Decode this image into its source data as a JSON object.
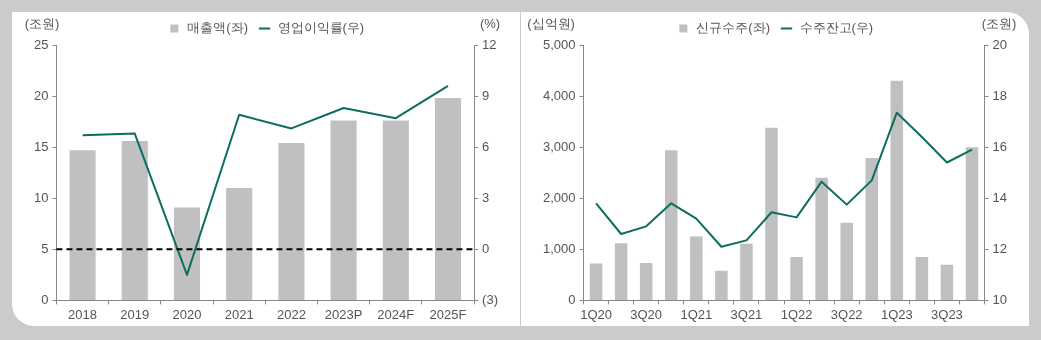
{
  "chart_data": [
    {
      "type": "bar",
      "ylabel": "(조원)",
      "y2label": "(%)",
      "legend": "top",
      "marker": "none",
      "categories": [
        "2018",
        "2019",
        "2020",
        "2021",
        "2022",
        "2023P",
        "2024F",
        "2025F"
      ],
      "series": [
        {
          "name": "매출액(좌)",
          "color": "#c0c0c0",
          "values": [
            14.7,
            15.6,
            9.1,
            11.0,
            15.4,
            17.6,
            17.6,
            19.8
          ]
        },
        {
          "name": "영업이익률(우)",
          "type": "line",
          "axis": "y2",
          "color": "#0b6e5f",
          "values": [
            6.7,
            6.8,
            -1.5,
            7.9,
            7.1,
            8.3,
            7.7,
            9.6
          ]
        }
      ],
      "ylim": [
        0,
        25
      ],
      "yticks": [
        0,
        5,
        10,
        15,
        20,
        25
      ],
      "y2lim": [
        -3,
        12
      ],
      "y2ticks": [
        {
          "value": -3,
          "label": "(3)"
        },
        0,
        3,
        6,
        9,
        12
      ],
      "ref_lines": [
        {
          "axis": "y2",
          "value": 0,
          "color": "#000000",
          "line_style": "dashed"
        }
      ]
    },
    {
      "type": "bar",
      "ylabel": "(십억원)",
      "y2label": "(조원)",
      "legend": "top",
      "marker": "none",
      "categories": [
        "1Q20",
        null,
        "3Q20",
        null,
        "1Q21",
        null,
        "3Q21",
        null,
        "1Q22",
        null,
        "3Q22",
        null,
        "1Q23",
        null,
        "3Q23",
        null
      ],
      "series": [
        {
          "name": "신규수주(좌)",
          "color": "#c0c0c0",
          "values": [
            720,
            1120,
            730,
            2940,
            1250,
            580,
            1110,
            3380,
            850,
            2400,
            1520,
            2790,
            4300,
            850,
            700,
            3000
          ]
        },
        {
          "name": "수주잔고(우)",
          "type": "line",
          "axis": "y2",
          "color": "#0b6e5f",
          "values": [
            13.8,
            12.6,
            12.9,
            13.8,
            13.2,
            12.1,
            12.35,
            13.45,
            13.25,
            14.65,
            13.75,
            14.7,
            17.35,
            16.4,
            15.4,
            15.9
          ]
        }
      ],
      "ylim": [
        0,
        5000
      ],
      "yticks": [
        0,
        {
          "value": 1000,
          "label": "1,000"
        },
        {
          "value": 2000,
          "label": "2,000"
        },
        {
          "value": 3000,
          "label": "3,000"
        },
        {
          "value": 4000,
          "label": "4,000"
        },
        {
          "value": 5000,
          "label": "5,000"
        }
      ],
      "y2lim": [
        10,
        20
      ],
      "y2ticks": [
        10,
        12,
        14,
        16,
        18,
        20
      ]
    }
  ]
}
